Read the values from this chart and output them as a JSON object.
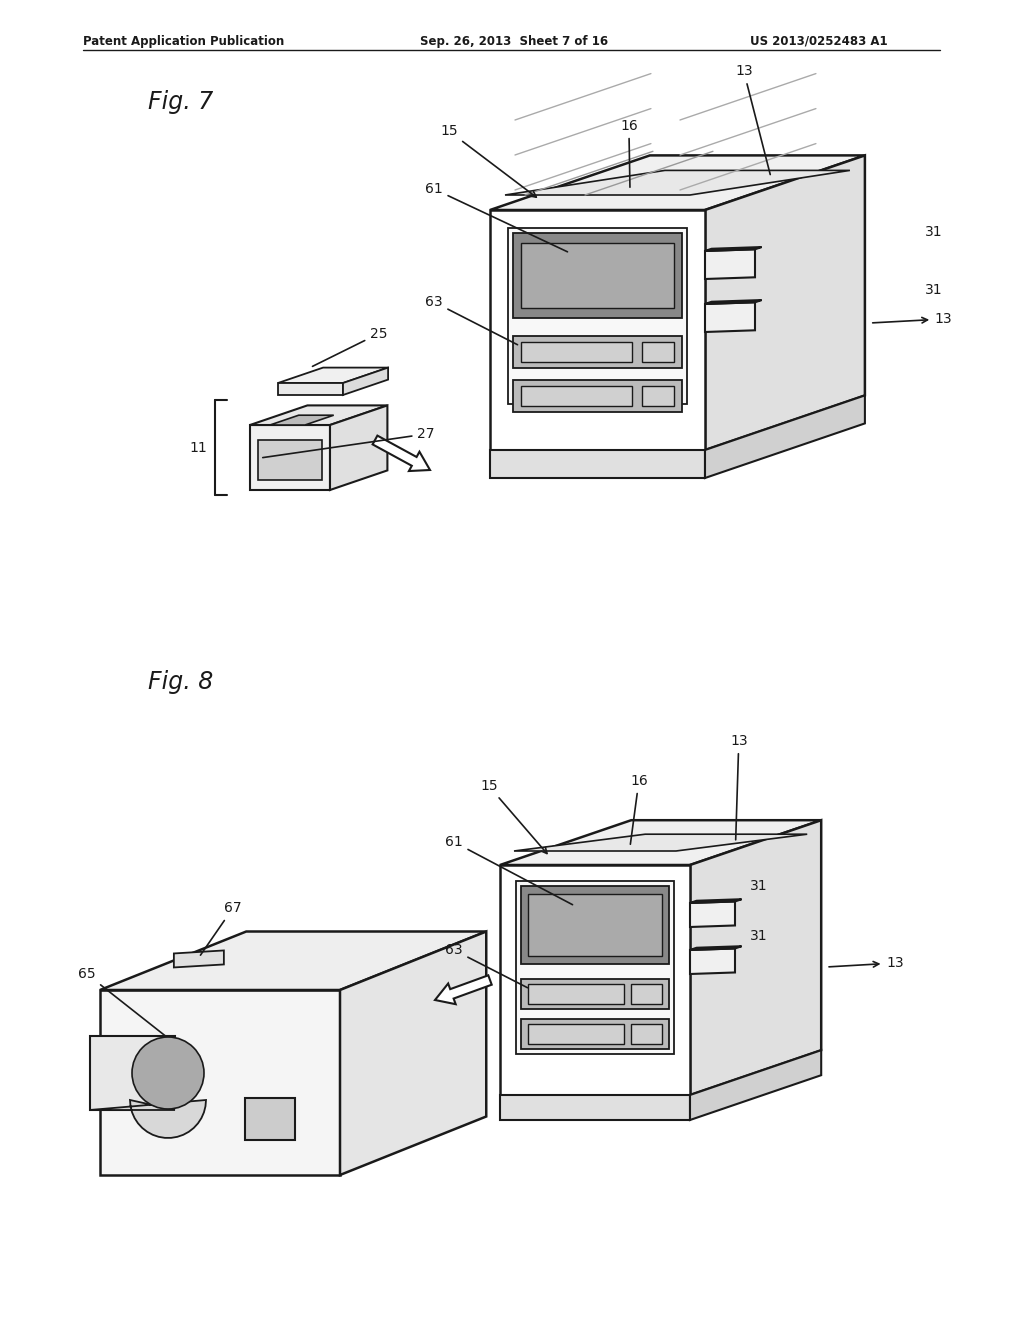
{
  "bg_color": "#ffffff",
  "header_left": "Patent Application Publication",
  "header_center": "Sep. 26, 2013  Sheet 7 of 16",
  "header_right": "US 2013/0252483 A1",
  "fig7_label": "Fig. 7",
  "fig8_label": "Fig. 8",
  "lc": "#1a1a1a",
  "tc": "#1a1a1a",
  "face_color": "#ffffff",
  "shadow_color": "#e8e8e8",
  "dark_color": "#cccccc"
}
